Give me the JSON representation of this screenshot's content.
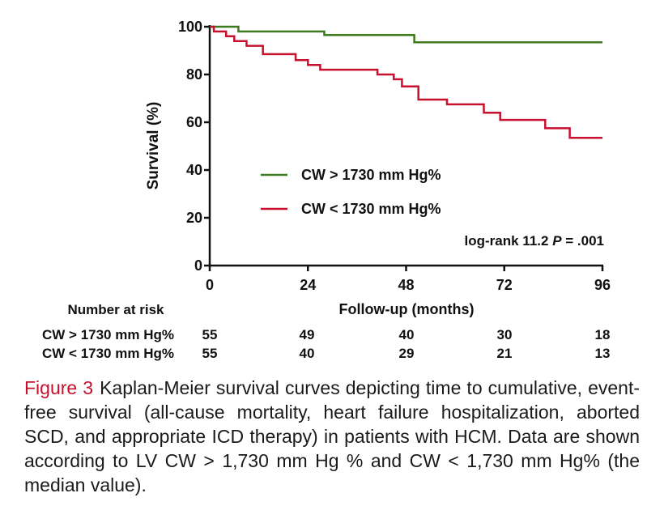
{
  "chart_data": {
    "type": "line",
    "subtype": "kaplan-meier step",
    "xlabel": "Follow-up (months)",
    "ylabel": "Survival (%)",
    "xlim": [
      0,
      96
    ],
    "ylim": [
      0,
      100
    ],
    "xticks": [
      "0",
      "24",
      "48",
      "72",
      "96"
    ],
    "yticks": [
      "0",
      "20",
      "40",
      "60",
      "80",
      "100"
    ],
    "grid": false,
    "legend_position": "center",
    "annotation": {
      "prefix": "log-rank 11.2 ",
      "p_label": "P",
      "suffix": " = .001"
    },
    "series": [
      {
        "name": "CW > 1730 mm Hg%",
        "color": "#3d7a1e",
        "x": [
          0,
          7,
          7,
          28,
          28,
          50,
          50,
          96
        ],
        "y": [
          100,
          100,
          98,
          98,
          96.5,
          96.5,
          93.5,
          93.5
        ]
      },
      {
        "name": "CW < 1730 mm Hg%",
        "color": "#c8102e",
        "x": [
          0,
          1,
          1,
          4,
          4,
          6,
          6,
          9,
          9,
          13,
          13,
          21,
          21,
          24,
          24,
          27,
          27,
          41,
          41,
          45,
          45,
          47,
          47,
          51,
          51,
          58,
          58,
          67,
          67,
          71,
          71,
          82,
          82,
          88,
          88,
          96
        ],
        "y": [
          100,
          100,
          98,
          98,
          96,
          96,
          94,
          94,
          92,
          92,
          88.5,
          88.5,
          86,
          86,
          84,
          84,
          82,
          82,
          80,
          80,
          78,
          78,
          75,
          75,
          69.5,
          69.5,
          67.5,
          67.5,
          64,
          64,
          61,
          61,
          57.5,
          57.5,
          53.5,
          53.5
        ]
      }
    ]
  },
  "risk_table": {
    "title": "Number at risk",
    "rows": [
      {
        "label": "CW > 1730 mm Hg%",
        "values": [
          "55",
          "49",
          "40",
          "30",
          "18"
        ]
      },
      {
        "label": "CW < 1730 mm Hg%",
        "values": [
          "55",
          "40",
          "29",
          "21",
          "13"
        ]
      }
    ]
  },
  "caption": {
    "label": "Figure 3",
    "text": "Kaplan-Meier survival curves depicting time to cumulative, event-free survival (all-cause mortality, heart failure hospitalization, aborted SCD, and appropriate ICD therapy) in patients with HCM. Data are shown according to LV CW > 1,730 mm Hg % and CW < 1,730 mm Hg% (the median value)."
  }
}
